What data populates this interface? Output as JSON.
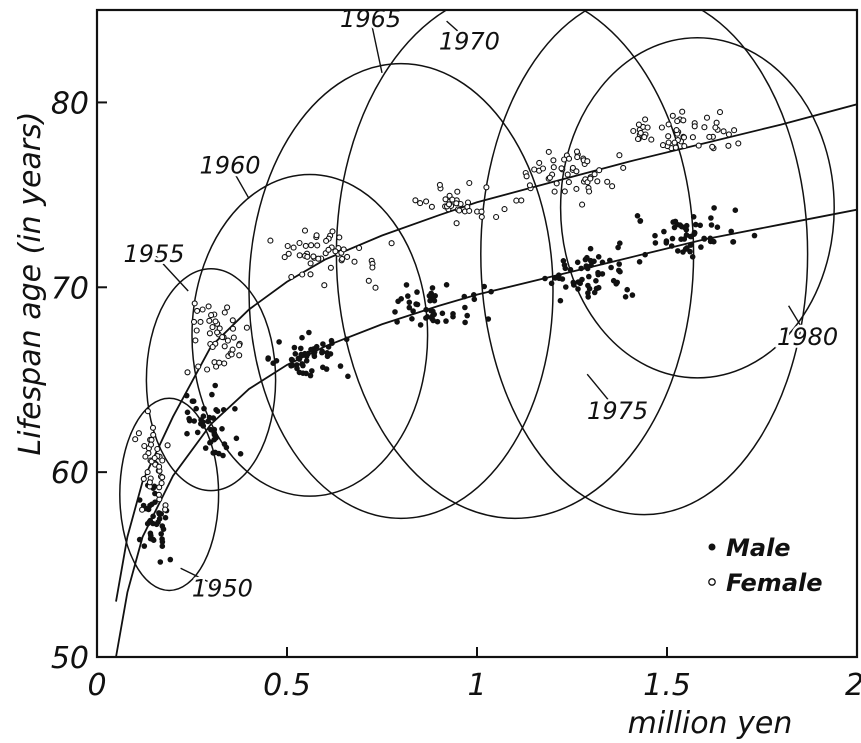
{
  "chart_data": {
    "type": "scatter",
    "title": "",
    "xlabel": "million yen",
    "ylabel": "Lifespan   age (in years)",
    "xlim": [
      0,
      2
    ],
    "ylim": [
      50,
      85
    ],
    "x_ticks": [
      0,
      0.5,
      1,
      1.5,
      2
    ],
    "x_tick_labels": [
      "0",
      "0.5",
      "1",
      "1.5",
      "2"
    ],
    "y_ticks": [
      50,
      60,
      70,
      80
    ],
    "y_tick_labels": [
      "50",
      "60",
      "70",
      "80"
    ],
    "grid": false,
    "legend": {
      "position": "bottom-right",
      "entries": [
        {
          "name": "Male",
          "marker": "filled-circle"
        },
        {
          "name": "Female",
          "marker": "open-circle"
        }
      ]
    },
    "series": [
      {
        "name": "Male",
        "marker": "filled-circle",
        "fit_curve": [
          [
            0.05,
            50
          ],
          [
            0.08,
            53.5
          ],
          [
            0.12,
            56.5
          ],
          [
            0.2,
            59.8
          ],
          [
            0.3,
            62.6
          ],
          [
            0.4,
            64.5
          ],
          [
            0.5,
            65.8
          ],
          [
            0.6,
            66.8
          ],
          [
            0.75,
            68.0
          ],
          [
            0.9,
            69.0
          ],
          [
            1.0,
            69.6
          ],
          [
            1.2,
            70.6
          ],
          [
            1.4,
            71.6
          ],
          [
            1.6,
            72.6
          ],
          [
            1.8,
            73.4
          ],
          [
            2.0,
            74.2
          ]
        ],
        "clusters": [
          {
            "cx": 0.15,
            "cy": 57.5,
            "sx": 0.04,
            "sy": 2.3,
            "n": 40
          },
          {
            "cx": 0.3,
            "cy": 62.5,
            "sx": 0.07,
            "sy": 2.0,
            "n": 45
          },
          {
            "cx": 0.55,
            "cy": 66.2,
            "sx": 0.1,
            "sy": 1.1,
            "n": 50
          },
          {
            "cx": 0.9,
            "cy": 69.0,
            "sx": 0.13,
            "sy": 1.0,
            "n": 45
          },
          {
            "cx": 1.3,
            "cy": 70.8,
            "sx": 0.13,
            "sy": 1.3,
            "n": 55
          },
          {
            "cx": 1.55,
            "cy": 72.8,
            "sx": 0.14,
            "sy": 1.3,
            "n": 55
          }
        ]
      },
      {
        "name": "Female",
        "marker": "open-circle",
        "fit_curve": [
          [
            0.05,
            53
          ],
          [
            0.08,
            56.5
          ],
          [
            0.12,
            59.5
          ],
          [
            0.2,
            63.0
          ],
          [
            0.3,
            66.8
          ],
          [
            0.4,
            68.8
          ],
          [
            0.5,
            70.3
          ],
          [
            0.6,
            71.5
          ],
          [
            0.75,
            72.8
          ],
          [
            0.9,
            73.9
          ],
          [
            1.0,
            74.6
          ],
          [
            1.2,
            75.7
          ],
          [
            1.4,
            76.8
          ],
          [
            1.6,
            77.8
          ],
          [
            1.8,
            78.8
          ],
          [
            2.0,
            79.9
          ]
        ],
        "clusters": [
          {
            "cx": 0.15,
            "cy": 60.5,
            "sx": 0.04,
            "sy": 2.4,
            "n": 40
          },
          {
            "cx": 0.32,
            "cy": 67.5,
            "sx": 0.08,
            "sy": 2.0,
            "n": 45
          },
          {
            "cx": 0.6,
            "cy": 71.8,
            "sx": 0.12,
            "sy": 1.4,
            "n": 50
          },
          {
            "cx": 0.95,
            "cy": 74.6,
            "sx": 0.12,
            "sy": 0.9,
            "n": 35
          },
          {
            "cx": 1.25,
            "cy": 76.3,
            "sx": 0.12,
            "sy": 1.2,
            "n": 50
          },
          {
            "cx": 1.55,
            "cy": 78.4,
            "sx": 0.14,
            "sy": 1.1,
            "n": 55
          }
        ]
      }
    ],
    "year_groups": [
      {
        "label": "1950",
        "cx": 0.19,
        "cy": 58.8,
        "rx": 0.13,
        "ry": 5.2,
        "label_x": 0.33,
        "label_y": 53.7,
        "anchor_x": 0.22,
        "anchor_y": 54.8
      },
      {
        "label": "1955",
        "cx": 0.3,
        "cy": 65.0,
        "rx": 0.17,
        "ry": 6.0,
        "label_x": 0.15,
        "label_y": 71.8,
        "anchor_x": 0.24,
        "anchor_y": 69.8
      },
      {
        "label": "1960",
        "cx": 0.56,
        "cy": 67.4,
        "rx": 0.31,
        "ry": 8.7,
        "label_x": 0.35,
        "label_y": 76.6,
        "anchor_x": 0.4,
        "anchor_y": 74.8
      },
      {
        "label": "1965",
        "cx": 0.8,
        "cy": 69.8,
        "rx": 0.4,
        "ry": 12.3,
        "label_x": 0.72,
        "label_y": 84.5,
        "anchor_x": 0.75,
        "anchor_y": 81.6
      },
      {
        "label": "1970",
        "cx": 1.1,
        "cy": 71.8,
        "rx": 0.47,
        "ry": 14.3,
        "label_x": 0.98,
        "label_y": 83.3,
        "anchor_x": 0.92,
        "anchor_y": 84.4
      },
      {
        "label": "1975",
        "cx": 1.44,
        "cy": 71.8,
        "rx": 0.43,
        "ry": 14.1,
        "label_x": 1.37,
        "label_y": 63.3,
        "anchor_x": 1.29,
        "anchor_y": 65.3
      },
      {
        "label": "1980",
        "cx": 1.58,
        "cy": 74.3,
        "rx": 0.36,
        "ry": 9.2,
        "label_x": 1.87,
        "label_y": 67.3,
        "anchor_x": 1.82,
        "anchor_y": 69.0
      }
    ]
  }
}
